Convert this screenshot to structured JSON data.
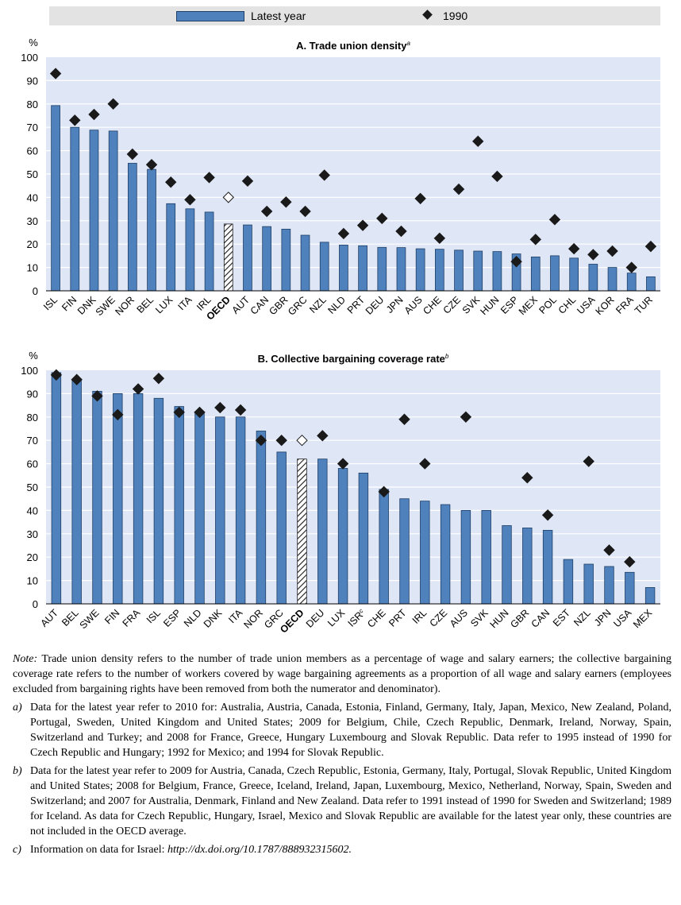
{
  "legend": {
    "bar_label": "Latest year",
    "diamond_label": "1990"
  },
  "chart_data": [
    {
      "type": "bar",
      "title": "A. Trade union density",
      "title_sup": "a",
      "ylabel": "%",
      "ylim": [
        0,
        100
      ],
      "yticks": [
        "0",
        "10",
        "20",
        "30",
        "40",
        "50",
        "60",
        "70",
        "80",
        "90",
        "100"
      ],
      "grid": true,
      "categories": [
        "ISL",
        "FIN",
        "DNK",
        "SWE",
        "NOR",
        "BEL",
        "LUX",
        "ITA",
        "IRL",
        "OECD",
        "AUT",
        "CAN",
        "GBR",
        "GRC",
        "NZL",
        "NLD",
        "PRT",
        "DEU",
        "JPN",
        "AUS",
        "CHE",
        "CZE",
        "SVK",
        "HUN",
        "ESP",
        "MEX",
        "POL",
        "CHL",
        "USA",
        "KOR",
        "FRA",
        "TUR"
      ],
      "category_sups": [
        "",
        "",
        "",
        "",
        "",
        "",
        "",
        "",
        "",
        "",
        "",
        "",
        "",
        "",
        "",
        "",
        "",
        "",
        "",
        "",
        "",
        "",
        "",
        "",
        "",
        "",
        "",
        "",
        "",
        "",
        "",
        ""
      ],
      "highlight": "OECD",
      "series": [
        {
          "name": "Latest year",
          "marker": "bar",
          "values": [
            79.3,
            70.0,
            68.8,
            68.4,
            54.6,
            52.0,
            37.3,
            35.1,
            33.7,
            28.6,
            28.2,
            27.5,
            26.4,
            23.8,
            20.8,
            19.6,
            19.3,
            18.6,
            18.5,
            18.0,
            17.8,
            17.4,
            17.0,
            16.8,
            15.8,
            14.5,
            15.0,
            14.0,
            11.4,
            10.0,
            7.6,
            6.0
          ]
        },
        {
          "name": "1990",
          "marker": "diamond",
          "values": [
            93,
            73,
            75.5,
            80,
            58.5,
            54,
            46.5,
            39,
            48.5,
            40,
            47,
            34,
            38,
            34,
            49.5,
            24.5,
            28,
            31,
            25.5,
            39.5,
            22.5,
            43.5,
            64,
            49,
            12.5,
            22,
            30.5,
            18,
            15.5,
            17,
            10,
            19
          ]
        }
      ]
    },
    {
      "type": "bar",
      "title": "B. Collective bargaining coverage rate",
      "title_sup": "b",
      "ylabel": "%",
      "ylim": [
        0,
        100
      ],
      "yticks": [
        "0",
        "10",
        "20",
        "30",
        "40",
        "50",
        "60",
        "70",
        "80",
        "90",
        "100"
      ],
      "grid": true,
      "categories": [
        "AUT",
        "BEL",
        "SWE",
        "FIN",
        "FRA",
        "ISL",
        "ESP",
        "NLD",
        "DNK",
        "ITA",
        "NOR",
        "GRC",
        "OECD",
        "DEU",
        "LUX",
        "ISR",
        "CHE",
        "PRT",
        "IRL",
        "CZE",
        "AUS",
        "SVK",
        "HUN",
        "GBR",
        "CAN",
        "EST",
        "NZL",
        "JPN",
        "USA",
        "MEX"
      ],
      "category_sups": [
        "",
        "",
        "",
        "",
        "",
        "",
        "",
        "",
        "",
        "",
        "",
        "",
        "",
        "",
        "",
        "c",
        "",
        "",
        "",
        "",
        "",
        "",
        "",
        "",
        "",
        "",
        "",
        "",
        "",
        ""
      ],
      "highlight": "OECD",
      "series": [
        {
          "name": "Latest year",
          "marker": "bar",
          "values": [
            99,
            96,
            91,
            90,
            90,
            88,
            84.5,
            82,
            80,
            80,
            74,
            65,
            62,
            62,
            58,
            56,
            49,
            45,
            44,
            42.5,
            40,
            40,
            33.5,
            32.5,
            31.5,
            19,
            17,
            16,
            13.5,
            7
          ]
        },
        {
          "name": "1990",
          "marker": "diamond",
          "values": [
            98,
            96,
            89,
            81,
            92,
            96.5,
            82,
            82,
            84,
            83,
            70,
            70,
            70,
            72,
            60,
            null,
            48,
            79,
            60,
            null,
            80,
            null,
            null,
            54,
            38,
            null,
            61,
            23,
            18,
            null
          ]
        }
      ]
    }
  ],
  "notes": {
    "note_label": "Note:",
    "note_text": "Trade union density refers to the number of trade union members as a percentage of wage and salary earners; the collective bargaining coverage rate refers to the number of workers covered by wage bargaining agreements as a proportion of all wage and salary earners (employees excluded from bargaining rights have been removed from both the numerator and denominator).",
    "footnotes": [
      {
        "key": "a)",
        "text": "Data for the latest year refer to 2010 for: Australia, Austria, Canada, Estonia, Finland, Germany, Italy, Japan, Mexico, New Zealand, Poland, Portugal, Sweden, United Kingdom and United States; 2009 for Belgium, Chile, Czech Republic, Denmark, Ireland, Norway, Spain, Switzerland and Turkey; and 2008 for France, Greece, Hungary Luxembourg and Slovak Republic. Data refer to 1995 instead of 1990 for Czech Republic and Hungary; 1992 for Mexico; and 1994 for Slovak Republic."
      },
      {
        "key": "b)",
        "text": "Data for the latest year refer to 2009 for Austria, Canada, Czech Republic, Estonia, Germany, Italy, Portugal, Slovak Republic, United Kingdom and United States; 2008 for Belgium, France, Greece, Iceland, Ireland, Japan, Luxembourg, Mexico, Netherland, Norway, Spain, Sweden and Switzerland; and 2007 for Australia, Denmark, Finland and New Zealand. Data refer to 1991 instead of 1990 for Sweden and Switzerland; 1989 for Iceland. As data for Czech Republic, Hungary, Israel, Mexico and Slovak Republic are available for the latest year only, these countries are not included in the OECD average."
      },
      {
        "key": "c)",
        "text": "Information on data for Israel: ",
        "link": "http://dx.doi.org/10.1787/888932315602."
      }
    ]
  }
}
